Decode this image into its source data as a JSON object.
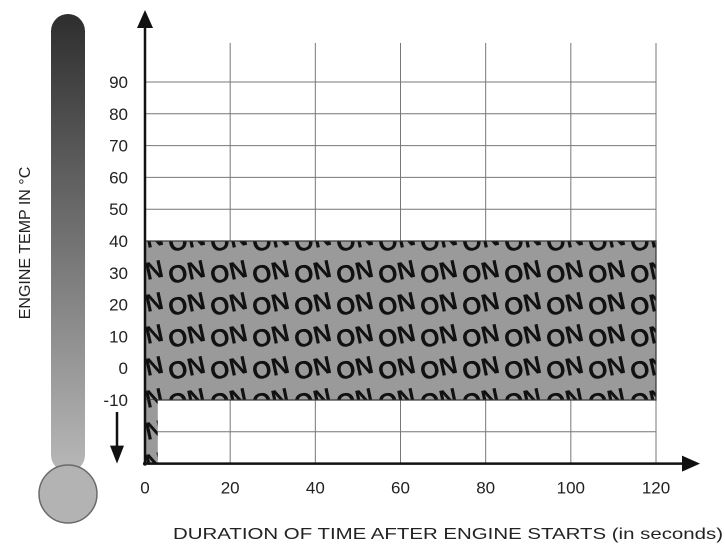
{
  "chart_data": {
    "type": "area",
    "xlabel": "DURATION OF TIME AFTER ENGINE STARTS (in seconds)",
    "ylabel": "ENGINE TEMP IN °C",
    "x_ticks": [
      0,
      20,
      40,
      60,
      80,
      100,
      120
    ],
    "y_ticks": [
      -10,
      0,
      10,
      20,
      30,
      40,
      50,
      60,
      70,
      80,
      90
    ],
    "xlim": [
      0,
      120
    ],
    "ylim": [
      -30,
      100
    ],
    "grid": true,
    "on_region": {
      "label": "ON",
      "x_range": [
        0,
        120
      ],
      "y_range": [
        -10,
        40
      ],
      "fill_color": "#9a9a9a"
    },
    "on_strip": {
      "label": "ON",
      "x_range": [
        0,
        3
      ],
      "y_range": [
        -30,
        -10
      ]
    },
    "below_arrow_y": -10,
    "thermometer_gradient": [
      "#2e2e2e",
      "#b8b8b8"
    ]
  }
}
